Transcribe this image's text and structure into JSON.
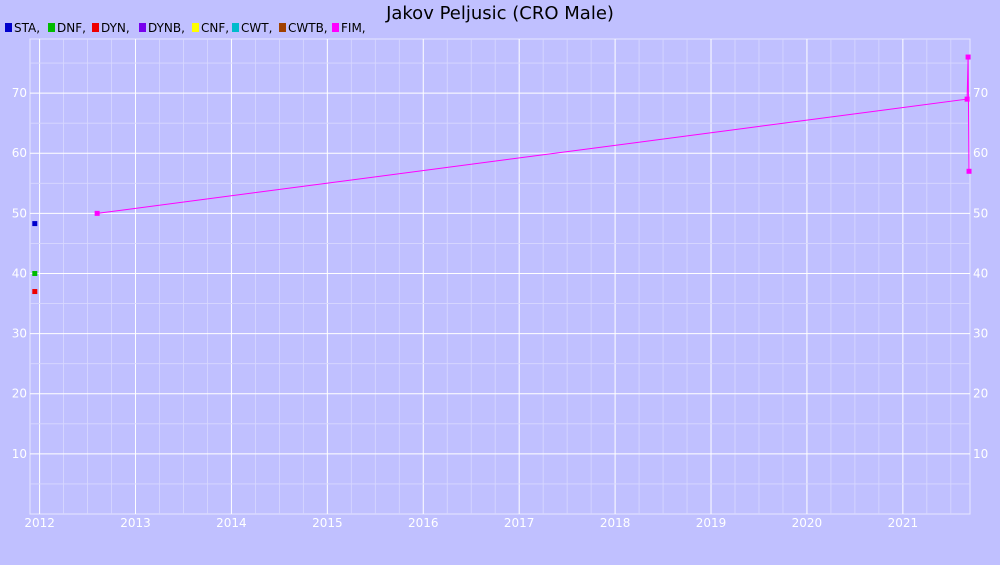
{
  "chart_data": {
    "type": "line",
    "title": "Jakov Peljusic (CRO Male)",
    "xlabel": "",
    "ylabel": "",
    "x_ticks": [
      "2012",
      "2013",
      "2014",
      "2015",
      "2016",
      "2017",
      "2018",
      "2019",
      "2020",
      "2021"
    ],
    "y_ticks": [
      10,
      20,
      30,
      40,
      50,
      60,
      70
    ],
    "xlim": [
      2011.9,
      2021.7
    ],
    "ylim": [
      0,
      79
    ],
    "grid": true,
    "legend_position": "top-left",
    "series": [
      {
        "name": "STA,",
        "color": "#0000cc",
        "points": [
          [
            2011.95,
            48.3
          ]
        ]
      },
      {
        "name": "DNF,",
        "color": "#00bb00",
        "points": [
          [
            2011.95,
            40.0
          ]
        ]
      },
      {
        "name": "DYN,",
        "color": "#ee0000",
        "points": [
          [
            2011.95,
            37.0
          ]
        ]
      },
      {
        "name": "DYNB,",
        "color": "#7700ee",
        "points": []
      },
      {
        "name": "CNF,",
        "color": "#ffff00",
        "points": []
      },
      {
        "name": "CWT,",
        "color": "#00bbcc",
        "points": []
      },
      {
        "name": "CWTB,",
        "color": "#a04000",
        "points": []
      },
      {
        "name": "FIM,",
        "color": "#ff00ff",
        "points": [
          [
            2012.6,
            50.0
          ],
          [
            2021.67,
            69.0
          ],
          [
            2021.68,
            76.0
          ],
          [
            2021.69,
            57.0
          ]
        ]
      }
    ]
  }
}
